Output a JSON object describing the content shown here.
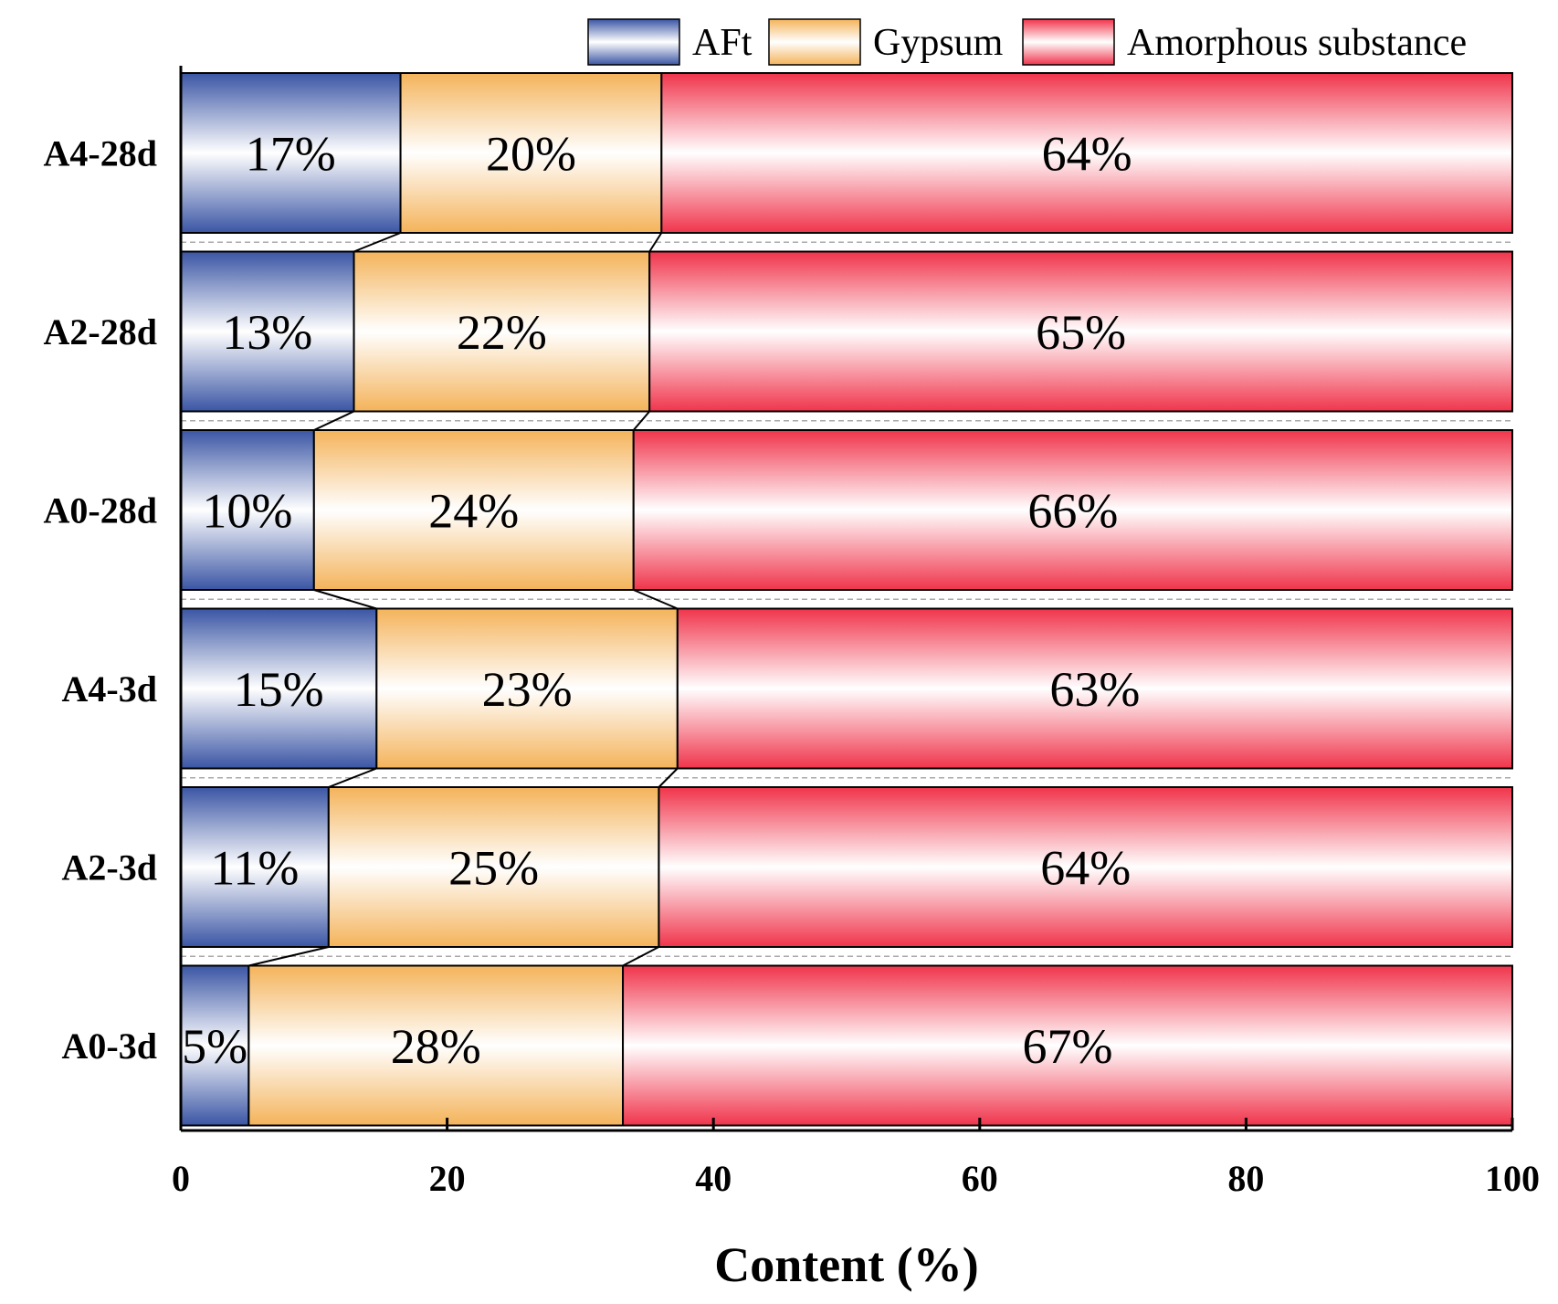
{
  "chart_data": {
    "type": "bar",
    "orientation": "horizontal",
    "stacked": true,
    "categories": [
      "A4-28d",
      "A2-28d",
      "A0-28d",
      "A4-3d",
      "A2-3d",
      "A0-3d"
    ],
    "series": [
      {
        "name": "AFt",
        "color": "#3a55a4",
        "values": [
          16.5,
          13,
          10,
          14.7,
          11.1,
          5.1
        ],
        "labels": [
          "17%",
          "13%",
          "10%",
          "15%",
          "11%",
          "5%"
        ]
      },
      {
        "name": "Gypsum",
        "color": "#f4b35a",
        "values": [
          19.6,
          22.2,
          24.0,
          22.6,
          24.8,
          28.1
        ],
        "labels": [
          "20%",
          "22%",
          "24%",
          "23%",
          "25%",
          "28%"
        ]
      },
      {
        "name": "Amorphous substance",
        "color": "#f0344b",
        "values": [
          63.9,
          64.8,
          66.0,
          62.7,
          64.1,
          66.8
        ],
        "labels": [
          "64%",
          "65%",
          "66%",
          "63%",
          "64%",
          "67%"
        ]
      }
    ],
    "xlabel": "Content (%)",
    "ylabel": "",
    "xlim": [
      0,
      100
    ],
    "xticks": [
      "0",
      "20",
      "40",
      "60",
      "80",
      "100"
    ],
    "legend_position": "top-right",
    "connector_lines": true
  }
}
